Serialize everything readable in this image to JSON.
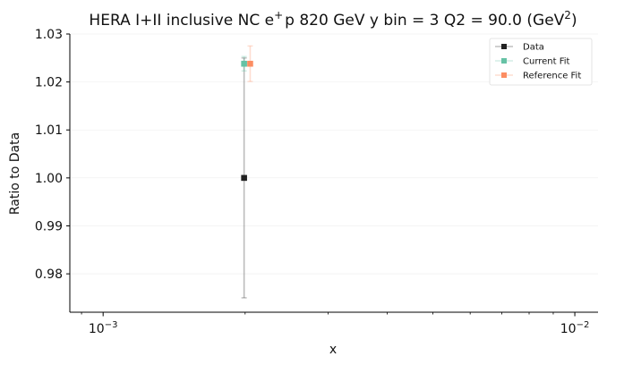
{
  "chart_data": {
    "type": "scatter",
    "title_main": "HERA I+II inclusive NC e",
    "title_sup_plus": "+",
    "title_rest": "p 820 GeV y bin = 3 Q2 = 90.0 (GeV",
    "title_sup_2": "2",
    "title_close": ")",
    "xlabel": "x",
    "ylabel": "Ratio to Data",
    "xscale": "log",
    "xlim": [
      0.00085,
      0.0112
    ],
    "ylim": [
      0.972,
      1.03
    ],
    "yticks": [
      0.98,
      0.99,
      1.0,
      1.01,
      1.02,
      1.03
    ],
    "ytick_labels": [
      "0.98",
      "0.99",
      "1.00",
      "1.01",
      "1.02",
      "1.03"
    ],
    "xticks_major": [
      0.001,
      0.01
    ],
    "xtick_labels": [
      {
        "base": "10",
        "exp": "−3"
      },
      {
        "base": "10",
        "exp": "−2"
      }
    ],
    "legend_position": "top-right",
    "grid": true,
    "series": [
      {
        "name": "Data",
        "color": "#222222",
        "marker": "square",
        "points": [
          {
            "x": 0.00199,
            "y": 1.0,
            "err": 0.025
          }
        ]
      },
      {
        "name": "Current Fit",
        "color": "#66c2a5",
        "marker": "square",
        "points": [
          {
            "x": 0.00199,
            "y": 1.0238,
            "err": 0.0015
          }
        ]
      },
      {
        "name": "Reference Fit",
        "color": "#fc8d62",
        "marker": "square",
        "points": [
          {
            "x": 0.00205,
            "y": 1.0238,
            "err": 0.0037
          }
        ]
      }
    ]
  }
}
